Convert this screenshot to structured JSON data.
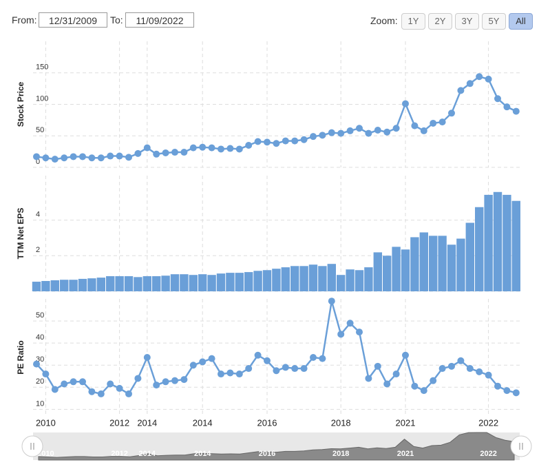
{
  "controls": {
    "from_label": "From:",
    "from": "12/31/2009",
    "to_label": "To:",
    "to": "11/09/2022",
    "zoom_label": "Zoom:",
    "zoom": [
      "1Y",
      "2Y",
      "3Y",
      "5Y",
      "All"
    ],
    "zoom_active": 4
  },
  "chart_data": [
    {
      "type": "line",
      "y_label": "Stock Price",
      "color": "#6a9fd8",
      "grid": true,
      "values": [
        17,
        15,
        13,
        15,
        17,
        17,
        15,
        15,
        18,
        18,
        16,
        22,
        31,
        21,
        23,
        24,
        24,
        31,
        32,
        31,
        29,
        30,
        29,
        35,
        41,
        40,
        38,
        42,
        42,
        44,
        49,
        51,
        55,
        54,
        58,
        62,
        54,
        59,
        56,
        62,
        101,
        66,
        58,
        70,
        72,
        86,
        122,
        133,
        144,
        140,
        109,
        96,
        89
      ],
      "ylim": [
        0,
        200
      ],
      "yticks": [
        0,
        50,
        100,
        150
      ]
    },
    {
      "type": "bar",
      "y_label": "TTM Net EPS",
      "color": "#6a9fd8",
      "grid": true,
      "values": [
        0.54,
        0.58,
        0.62,
        0.65,
        0.65,
        0.7,
        0.73,
        0.77,
        0.85,
        0.85,
        0.85,
        0.8,
        0.85,
        0.85,
        0.88,
        0.96,
        0.96,
        0.92,
        0.96,
        0.92,
        1.0,
        1.04,
        1.04,
        1.08,
        1.15,
        1.19,
        1.27,
        1.35,
        1.42,
        1.42,
        1.5,
        1.42,
        1.54,
        0.92,
        1.23,
        1.19,
        1.35,
        2.19,
        2.0,
        2.5,
        2.35,
        3.04,
        3.31,
        3.12,
        3.12,
        2.62,
        2.96,
        3.85,
        4.73,
        5.42,
        5.58,
        5.42,
        5.08
      ],
      "ylim": [
        0,
        6.5
      ],
      "yticks": [
        0,
        2,
        4
      ]
    },
    {
      "type": "line",
      "y_label": "PE Ratio",
      "color": "#6a9fd8",
      "grid": true,
      "values": [
        30.5,
        26,
        19,
        21.5,
        22.5,
        22.5,
        18,
        17,
        21.5,
        19.5,
        17,
        24,
        33.5,
        21,
        22.5,
        23,
        23.5,
        30,
        31.5,
        33,
        26,
        26.5,
        26,
        28.5,
        34.5,
        32,
        27.5,
        29,
        28.5,
        28.5,
        33.5,
        33,
        59,
        44,
        49,
        45,
        24,
        29.5,
        21.5,
        26,
        34.5,
        20.5,
        18.5,
        23,
        28.5,
        29.5,
        32,
        28.5,
        27,
        25.5,
        20.5,
        18.5,
        17.5
      ],
      "ylim": [
        7,
        60
      ],
      "yticks": [
        10,
        20,
        30,
        40,
        50
      ],
      "xticks": [
        {
          "value": 1,
          "label": "2010"
        },
        {
          "value": 9,
          "label": "2012"
        },
        {
          "value": 12,
          "label": "2014"
        },
        {
          "value": 18,
          "label": "2014"
        },
        {
          "value": 25,
          "label": "2016"
        },
        {
          "value": 33,
          "label": "2018"
        },
        {
          "value": 40,
          "label": "2021"
        },
        {
          "value": 49,
          "label": "2022"
        }
      ]
    }
  ]
}
